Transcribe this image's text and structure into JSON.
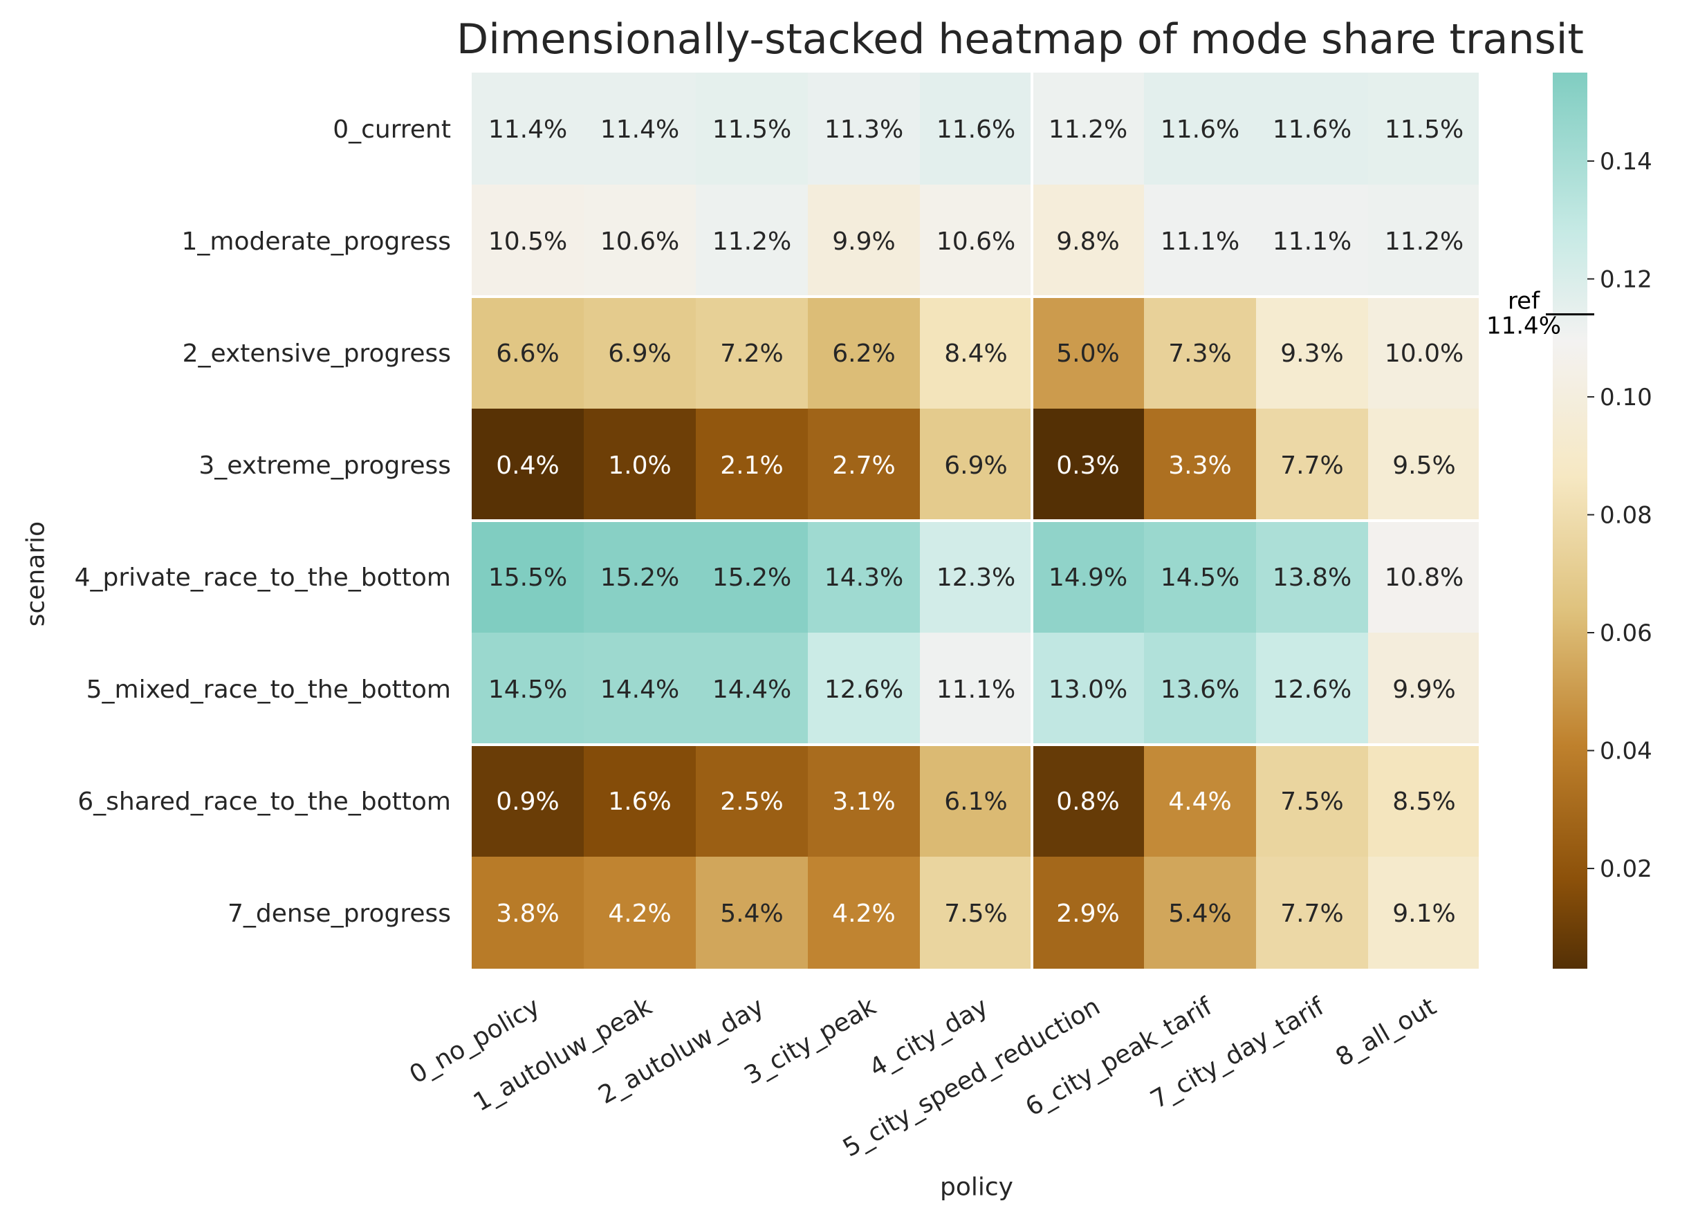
{
  "chart_data": {
    "type": "heatmap",
    "title": "Dimensionally-stacked heatmap of mode share transit",
    "xlabel": "policy",
    "ylabel": "scenario",
    "x_categories": [
      "0_no_policy",
      "1_autoluw_peak",
      "2_autoluw_day",
      "3_city_peak",
      "4_city_day",
      "5_city_speed_reduction",
      "6_city_peak_tarif",
      "7_city_day_tarif",
      "8_all_out"
    ],
    "y_categories": [
      "0_current",
      "1_moderate_progress",
      "2_extensive_progress",
      "3_extreme_progress",
      "4_private_race_to_the_bottom",
      "5_mixed_race_to_the_bottom",
      "6_shared_race_to_the_bottom",
      "7_dense_progress"
    ],
    "values": [
      [
        0.114,
        0.114,
        0.115,
        0.113,
        0.116,
        0.112,
        0.116,
        0.116,
        0.115
      ],
      [
        0.105,
        0.106,
        0.112,
        0.099,
        0.106,
        0.098,
        0.111,
        0.111,
        0.112
      ],
      [
        0.066,
        0.069,
        0.072,
        0.062,
        0.084,
        0.05,
        0.073,
        0.093,
        0.1
      ],
      [
        0.004,
        0.01,
        0.021,
        0.027,
        0.069,
        0.003,
        0.033,
        0.077,
        0.095
      ],
      [
        0.155,
        0.152,
        0.152,
        0.143,
        0.123,
        0.149,
        0.145,
        0.138,
        0.108
      ],
      [
        0.145,
        0.144,
        0.144,
        0.126,
        0.111,
        0.13,
        0.136,
        0.126,
        0.099
      ],
      [
        0.009,
        0.016,
        0.025,
        0.031,
        0.061,
        0.008,
        0.044,
        0.075,
        0.085
      ],
      [
        0.038,
        0.042,
        0.054,
        0.042,
        0.075,
        0.029,
        0.054,
        0.077,
        0.091
      ]
    ],
    "labels": [
      [
        "11.4%",
        "11.4%",
        "11.5%",
        "11.3%",
        "11.6%",
        "11.2%",
        "11.6%",
        "11.6%",
        "11.5%"
      ],
      [
        "10.5%",
        "10.6%",
        "11.2%",
        "9.9%",
        "10.6%",
        "9.8%",
        "11.1%",
        "11.1%",
        "11.2%"
      ],
      [
        "6.6%",
        "6.9%",
        "7.2%",
        "6.2%",
        "8.4%",
        "5.0%",
        "7.3%",
        "9.3%",
        "10.0%"
      ],
      [
        "0.4%",
        "1.0%",
        "2.1%",
        "2.7%",
        "6.9%",
        "0.3%",
        "3.3%",
        "7.7%",
        "9.5%"
      ],
      [
        "15.5%",
        "15.2%",
        "15.2%",
        "14.3%",
        "12.3%",
        "14.9%",
        "14.5%",
        "13.8%",
        "10.8%"
      ],
      [
        "14.5%",
        "14.4%",
        "14.4%",
        "12.6%",
        "11.1%",
        "13.0%",
        "13.6%",
        "12.6%",
        "9.9%"
      ],
      [
        "0.9%",
        "1.6%",
        "2.5%",
        "3.1%",
        "6.1%",
        "0.8%",
        "4.4%",
        "7.5%",
        "8.5%"
      ],
      [
        "3.8%",
        "4.2%",
        "5.4%",
        "4.2%",
        "7.5%",
        "2.9%",
        "5.4%",
        "7.7%",
        "9.1%"
      ]
    ],
    "colormap": "BrBG",
    "vmin": 0.003,
    "vmax": 0.155,
    "colorbar": {
      "ticks": [
        0.02,
        0.04,
        0.06,
        0.08,
        0.1,
        0.12,
        0.14
      ],
      "tick_labels": [
        "0.02",
        "0.04",
        "0.06",
        "0.08",
        "0.10",
        "0.12",
        "0.14"
      ],
      "reference": {
        "value": 0.114,
        "label_line1": "ref",
        "label_line2": "11.4%"
      }
    },
    "group_separators": {
      "rows_after": [
        1,
        3,
        5
      ],
      "cols_after": [
        4,
        8
      ]
    },
    "colors": {
      "dark_brown": "#543005",
      "mid_brown": "#bf812d",
      "light_tan": "#f6e8c3",
      "neutral": "#f3f2f1",
      "light_teal": "#c7eae5",
      "teal": "#80cdc1",
      "grid_line": "#ffffff",
      "text_dark": "#262626",
      "text_light": "#ffffff"
    }
  }
}
